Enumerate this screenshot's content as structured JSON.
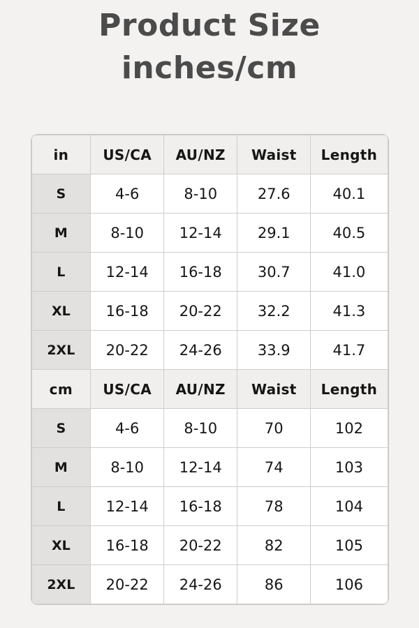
{
  "title": {
    "line1": "Product Size",
    "line2": "inches/cm"
  },
  "colors": {
    "page_background": "#f3f2f1",
    "title_text": "#4b4b4b",
    "header_row_background": "#f0efed",
    "size_column_background": "#e3e1df",
    "data_cell_background": "#ffffff",
    "grid_border": "#cfcdcb",
    "table_text": "#161616"
  },
  "chart_data": [
    {
      "type": "table",
      "title": "Product Size inches/cm",
      "unit": "inches",
      "columns": [
        "in",
        "US/CA",
        "AU/NZ",
        "Waist",
        "Length"
      ],
      "rows": [
        [
          "S",
          "4-6",
          "8-10",
          "27.6",
          "40.1"
        ],
        [
          "M",
          "8-10",
          "12-14",
          "29.1",
          "40.5"
        ],
        [
          "L",
          "12-14",
          "16-18",
          "30.7",
          "41.0"
        ],
        [
          "XL",
          "16-18",
          "20-22",
          "32.2",
          "41.3"
        ],
        [
          "2XL",
          "20-22",
          "24-26",
          "33.9",
          "41.7"
        ]
      ]
    },
    {
      "type": "table",
      "title": "Product Size inches/cm",
      "unit": "cm",
      "columns": [
        "cm",
        "US/CA",
        "AU/NZ",
        "Waist",
        "Length"
      ],
      "rows": [
        [
          "S",
          "4-6",
          "8-10",
          "70",
          "102"
        ],
        [
          "M",
          "8-10",
          "12-14",
          "74",
          "103"
        ],
        [
          "L",
          "12-14",
          "16-18",
          "78",
          "104"
        ],
        [
          "XL",
          "16-18",
          "20-22",
          "82",
          "105"
        ],
        [
          "2XL",
          "20-22",
          "24-26",
          "86",
          "106"
        ]
      ]
    }
  ]
}
